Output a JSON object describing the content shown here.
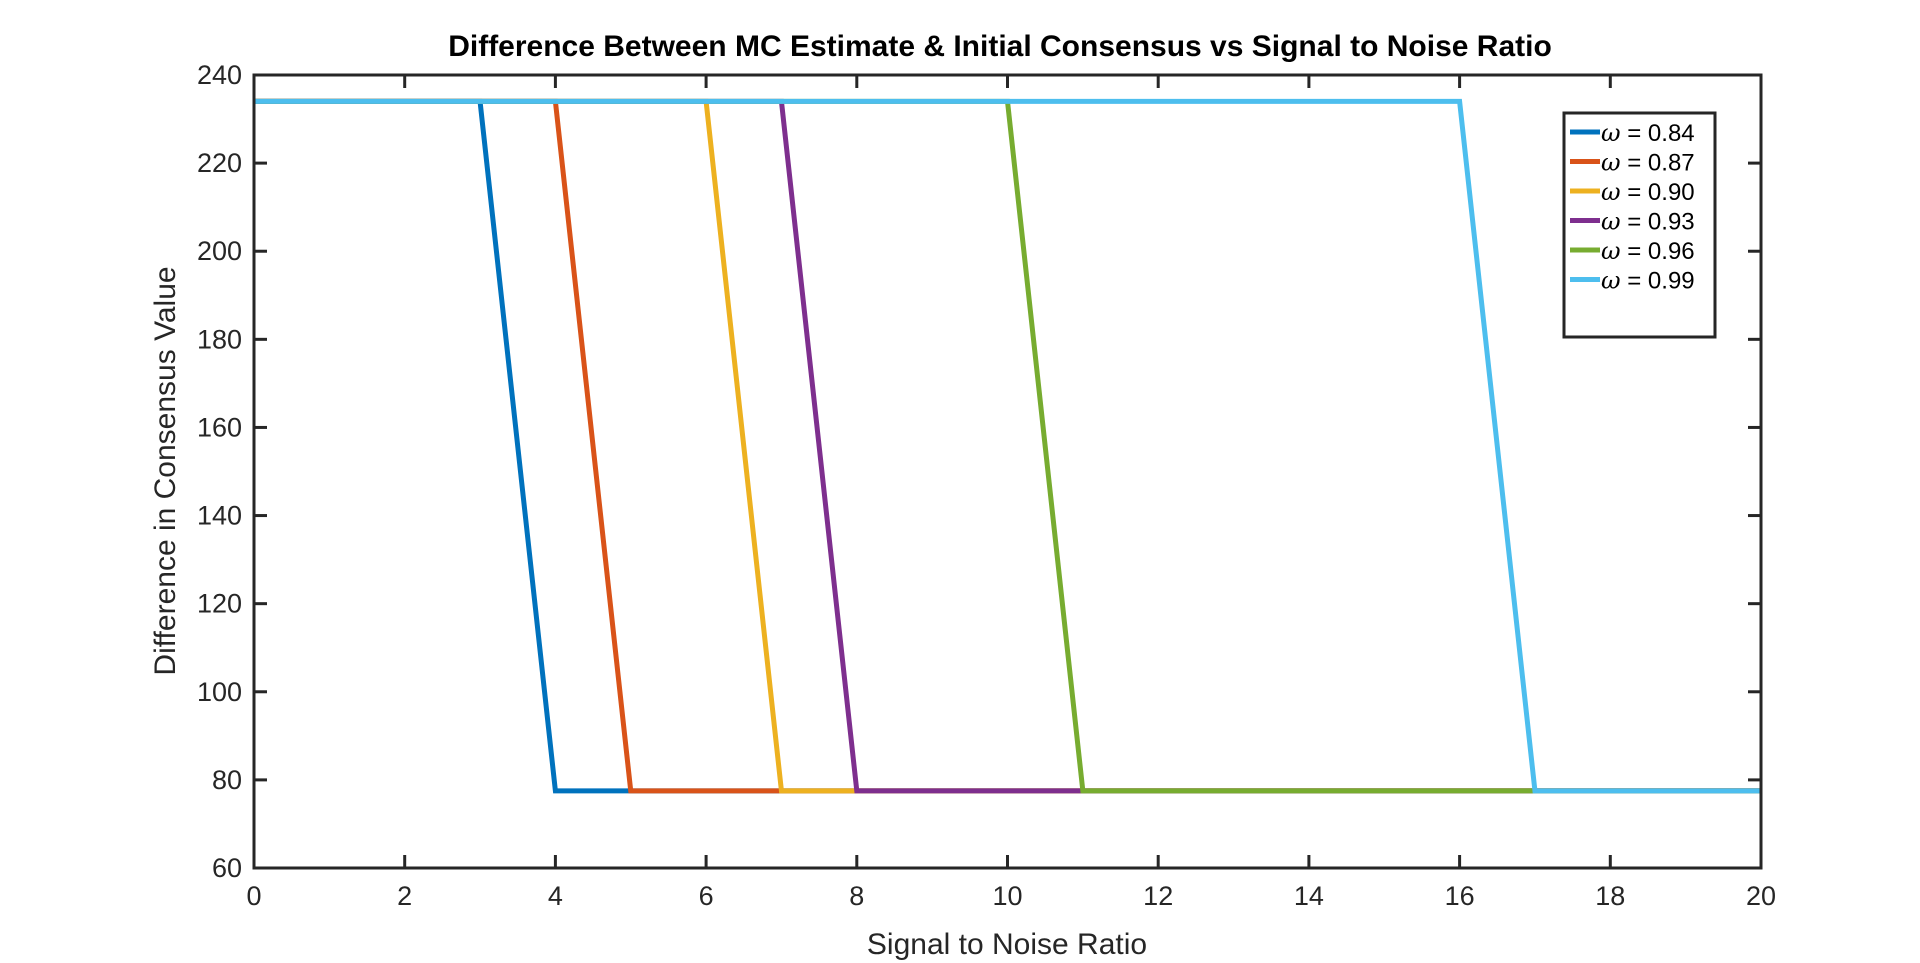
{
  "chart_data": {
    "type": "line",
    "title": "Difference Between MC Estimate & Initial Consensus vs Signal to Noise Ratio",
    "xlabel": "Signal to Noise Ratio",
    "ylabel": "Difference in Consensus Value",
    "xlim": [
      0,
      20
    ],
    "ylim": [
      60,
      240
    ],
    "xticks": [
      0,
      2,
      4,
      6,
      8,
      10,
      12,
      14,
      16,
      18,
      20
    ],
    "yticks": [
      60,
      80,
      100,
      120,
      140,
      160,
      180,
      200,
      220,
      240
    ],
    "grid": false,
    "legend_position": "top-right",
    "legend_symbol": "ω",
    "x": [
      0,
      1,
      2,
      3,
      4,
      5,
      6,
      7,
      8,
      9,
      10,
      11,
      12,
      13,
      14,
      15,
      16,
      17,
      18,
      19,
      20
    ],
    "series": [
      {
        "name": "= 0.84",
        "color": "#0072BD",
        "values": [
          234,
          234,
          234,
          234,
          77.5,
          77.5,
          77.5,
          77.5,
          77.5,
          77.5,
          77.5,
          77.5,
          77.5,
          77.5,
          77.5,
          77.5,
          77.5,
          77.5,
          77.5,
          77.5,
          77.5
        ]
      },
      {
        "name": "= 0.87",
        "color": "#D95319",
        "values": [
          234,
          234,
          234,
          234,
          234,
          77.5,
          77.5,
          77.5,
          77.5,
          77.5,
          77.5,
          77.5,
          77.5,
          77.5,
          77.5,
          77.5,
          77.5,
          77.5,
          77.5,
          77.5,
          77.5
        ]
      },
      {
        "name": "= 0.90",
        "color": "#EDB120",
        "values": [
          234,
          234,
          234,
          234,
          234,
          234,
          234,
          77.5,
          77.5,
          77.5,
          77.5,
          77.5,
          77.5,
          77.5,
          77.5,
          77.5,
          77.5,
          77.5,
          77.5,
          77.5,
          77.5
        ]
      },
      {
        "name": "= 0.93",
        "color": "#7E2F8E",
        "values": [
          234,
          234,
          234,
          234,
          234,
          234,
          234,
          234,
          77.5,
          77.5,
          77.5,
          77.5,
          77.5,
          77.5,
          77.5,
          77.5,
          77.5,
          77.5,
          77.5,
          77.5,
          77.5
        ]
      },
      {
        "name": "= 0.96",
        "color": "#77AC30",
        "values": [
          234,
          234,
          234,
          234,
          234,
          234,
          234,
          234,
          234,
          234,
          234,
          77.5,
          77.5,
          77.5,
          77.5,
          77.5,
          77.5,
          77.5,
          77.5,
          77.5,
          77.5
        ]
      },
      {
        "name": "= 0.99",
        "color": "#4DBEEE",
        "values": [
          234,
          234,
          234,
          234,
          234,
          234,
          234,
          234,
          234,
          234,
          234,
          234,
          234,
          234,
          234,
          234,
          234,
          77.5,
          77.5,
          77.5,
          77.5
        ]
      }
    ]
  }
}
